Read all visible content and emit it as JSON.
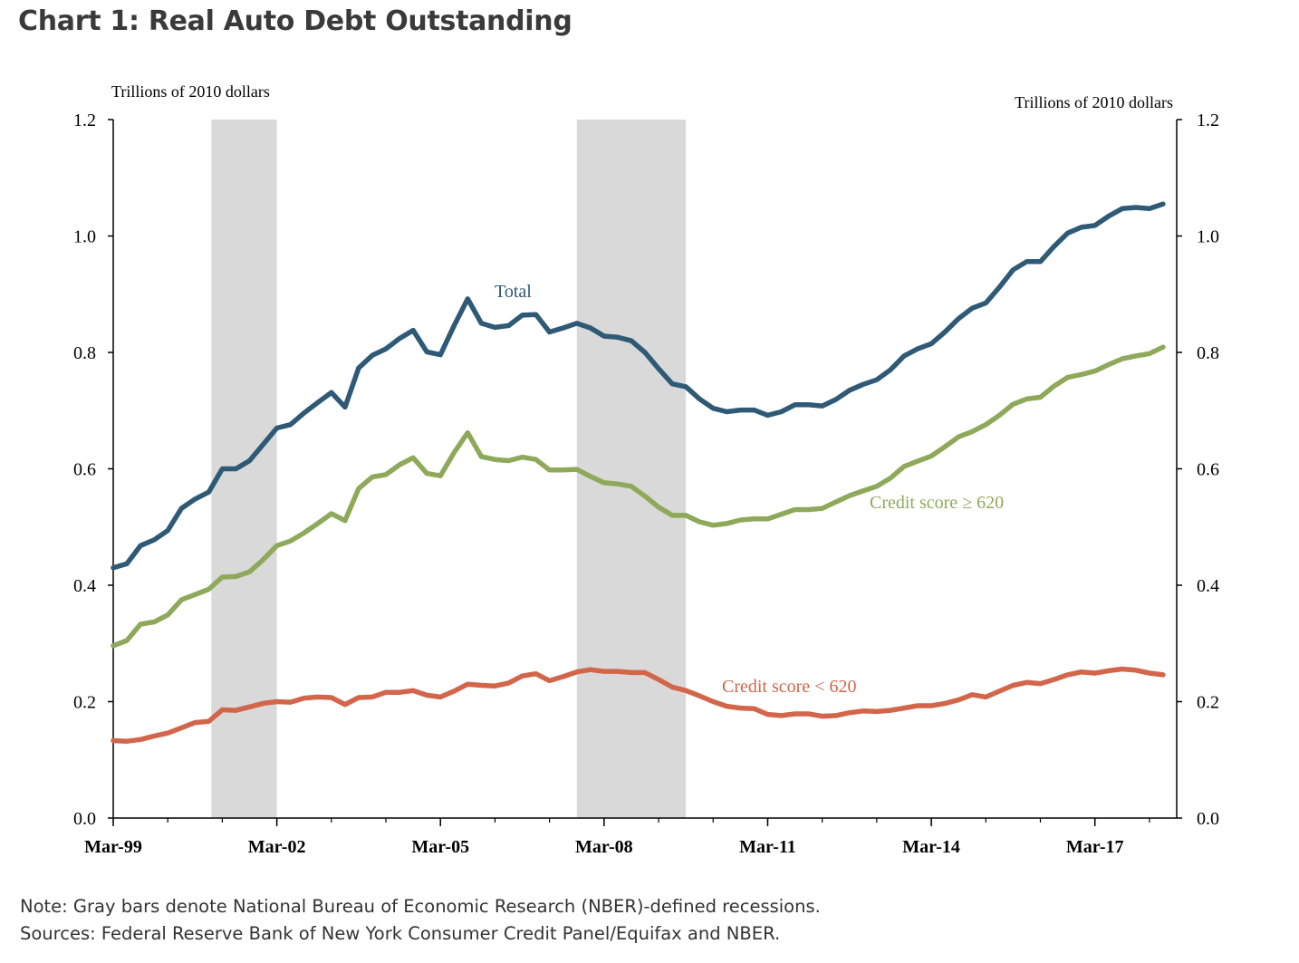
{
  "title": "Chart 1: Real Auto Debt Outstanding",
  "footnote": {
    "note": "Note: Gray bars denote National Bureau of Economic Research (NBER)-defined recessions.",
    "sources": "Sources: Federal Reserve Bank of New York Consumer Credit Panel/Equifax and NBER."
  },
  "colors": {
    "total": "#2e5a76",
    "prime": "#8ea95a",
    "subprime": "#d2654a",
    "recession": "#d9d9d9",
    "axis": "#000000"
  },
  "chart_data": {
    "type": "line",
    "left_axis_label": "Trillions of 2010 dollars",
    "right_axis_label": "Trillions of 2010 dollars",
    "ylim": [
      0,
      1.2
    ],
    "yticks": [
      "0.0",
      "0.2",
      "0.4",
      "0.6",
      "0.8",
      "1.0",
      "1.2"
    ],
    "ytick_values": [
      0,
      0.2,
      0.4,
      0.6,
      0.8,
      1.0,
      1.2
    ],
    "xlim": [
      1999.0,
      2018.5
    ],
    "xtick_labels": [
      "Mar-99",
      "Mar-02",
      "Mar-05",
      "Mar-08",
      "Mar-11",
      "Mar-14",
      "Mar-17"
    ],
    "xtick_values": [
      1999.0,
      2002.0,
      2005.0,
      2008.0,
      2011.0,
      2014.0,
      2017.0
    ],
    "x_start": 1999.0,
    "x_step": 0.25,
    "recessions": [
      [
        2000.8,
        2002.0
      ],
      [
        2007.5,
        2009.5
      ]
    ],
    "series": [
      {
        "name": "Total",
        "key": "total",
        "values": [
          0.43,
          0.437,
          0.468,
          0.478,
          0.494,
          0.532,
          0.548,
          0.56,
          0.6,
          0.6,
          0.614,
          0.642,
          0.67,
          0.676,
          0.696,
          0.714,
          0.731,
          0.706,
          0.773,
          0.795,
          0.806,
          0.824,
          0.838,
          0.801,
          0.796,
          0.846,
          0.892,
          0.85,
          0.843,
          0.846,
          0.864,
          0.865,
          0.835,
          0.842,
          0.85,
          0.842,
          0.828,
          0.826,
          0.82,
          0.8,
          0.772,
          0.746,
          0.741,
          0.72,
          0.704,
          0.698,
          0.701,
          0.701,
          0.692,
          0.698,
          0.71,
          0.71,
          0.708,
          0.719,
          0.735,
          0.745,
          0.753,
          0.77,
          0.794,
          0.806,
          0.815,
          0.835,
          0.858,
          0.876,
          0.885,
          0.912,
          0.942,
          0.956,
          0.956,
          0.982,
          1.005,
          1.015,
          1.018,
          1.034,
          1.047,
          1.049,
          1.047,
          1.055
        ]
      },
      {
        "name": "Credit score ≥ 620",
        "key": "prime",
        "values": [
          0.296,
          0.305,
          0.333,
          0.337,
          0.349,
          0.375,
          0.384,
          0.393,
          0.414,
          0.415,
          0.423,
          0.444,
          0.468,
          0.476,
          0.49,
          0.506,
          0.523,
          0.511,
          0.566,
          0.586,
          0.59,
          0.607,
          0.619,
          0.592,
          0.588,
          0.628,
          0.662,
          0.621,
          0.616,
          0.614,
          0.62,
          0.616,
          0.598,
          0.598,
          0.599,
          0.587,
          0.576,
          0.574,
          0.57,
          0.553,
          0.534,
          0.52,
          0.52,
          0.509,
          0.503,
          0.506,
          0.512,
          0.514,
          0.514,
          0.522,
          0.53,
          0.53,
          0.532,
          0.543,
          0.554,
          0.562,
          0.57,
          0.584,
          0.604,
          0.613,
          0.622,
          0.638,
          0.655,
          0.664,
          0.676,
          0.692,
          0.711,
          0.72,
          0.723,
          0.742,
          0.757,
          0.762,
          0.768,
          0.779,
          0.789,
          0.794,
          0.798,
          0.809
        ]
      },
      {
        "name": "Credit score < 620",
        "key": "subprime",
        "values": [
          0.133,
          0.132,
          0.135,
          0.141,
          0.146,
          0.155,
          0.164,
          0.166,
          0.186,
          0.185,
          0.191,
          0.197,
          0.2,
          0.199,
          0.206,
          0.208,
          0.207,
          0.195,
          0.207,
          0.208,
          0.216,
          0.216,
          0.219,
          0.211,
          0.208,
          0.218,
          0.23,
          0.228,
          0.227,
          0.232,
          0.244,
          0.248,
          0.236,
          0.243,
          0.251,
          0.255,
          0.252,
          0.252,
          0.25,
          0.25,
          0.238,
          0.225,
          0.219,
          0.21,
          0.2,
          0.192,
          0.189,
          0.188,
          0.178,
          0.176,
          0.179,
          0.179,
          0.175,
          0.176,
          0.181,
          0.184,
          0.183,
          0.185,
          0.189,
          0.193,
          0.193,
          0.197,
          0.203,
          0.212,
          0.208,
          0.218,
          0.228,
          0.233,
          0.231,
          0.238,
          0.246,
          0.251,
          0.249,
          0.253,
          0.256,
          0.254,
          0.249,
          0.246
        ]
      }
    ],
    "labels": {
      "total": "Total",
      "prime": "Credit score ≥ 620",
      "subprime": "Credit score < 620"
    }
  }
}
